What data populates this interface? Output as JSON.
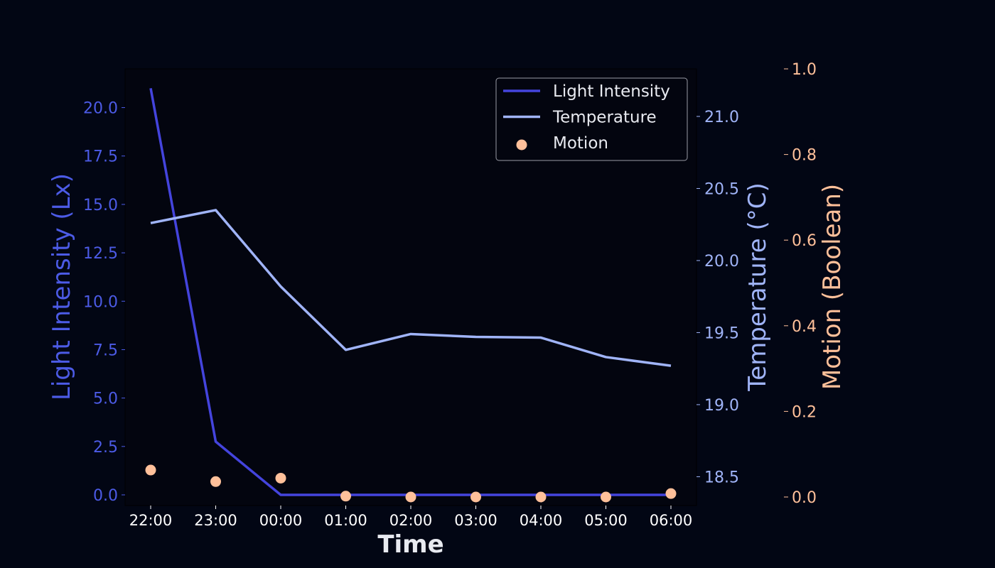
{
  "chart_data": {
    "type": "line",
    "xlabel": "Time",
    "categories": [
      "22:00",
      "23:00",
      "00:00",
      "01:00",
      "02:00",
      "03:00",
      "04:00",
      "05:00",
      "06:00"
    ],
    "series": [
      {
        "name": "Light Intensity",
        "kind": "line",
        "axis": "left",
        "color": "#4444dd",
        "values": [
          21.0,
          2.75,
          0.0,
          0.0,
          0.0,
          0.0,
          0.0,
          0.0,
          0.0
        ]
      },
      {
        "name": "Temperature",
        "kind": "line",
        "axis": "right",
        "color": "#a0b4f8",
        "values": [
          20.26,
          20.35,
          19.82,
          19.38,
          19.49,
          19.47,
          19.465,
          19.33,
          19.27
        ]
      },
      {
        "name": "Motion",
        "kind": "scatter",
        "axis": "right2",
        "color": "#ffc09a",
        "values": [
          0.063,
          0.036,
          0.044,
          0.002,
          0.0,
          0.0,
          0.0,
          0.0,
          0.008
        ]
      }
    ],
    "axes": {
      "left": {
        "label": "Light Intensity (Lx)",
        "color": "#4c5be6",
        "ylim": [
          -0.55,
          22.0
        ],
        "ticks": [
          "0.0",
          "2.5",
          "5.0",
          "7.5",
          "10.0",
          "12.5",
          "15.0",
          "17.5",
          "20.0"
        ]
      },
      "right": {
        "label": "Temperature (°C)",
        "color": "#a0b4f8",
        "ylim": [
          18.3,
          21.33
        ],
        "ticks": [
          "18.5",
          "19.0",
          "19.5",
          "20.0",
          "20.5",
          "21.0"
        ]
      },
      "right2": {
        "label": "Motion (Boolean)",
        "color": "#ffc09a",
        "ylim": [
          0.0,
          1.0
        ],
        "ticks": [
          "0.0",
          "0.2",
          "0.4",
          "0.6",
          "0.8",
          "1.0"
        ]
      }
    },
    "legend": {
      "position": "top-right"
    },
    "grid": false
  }
}
